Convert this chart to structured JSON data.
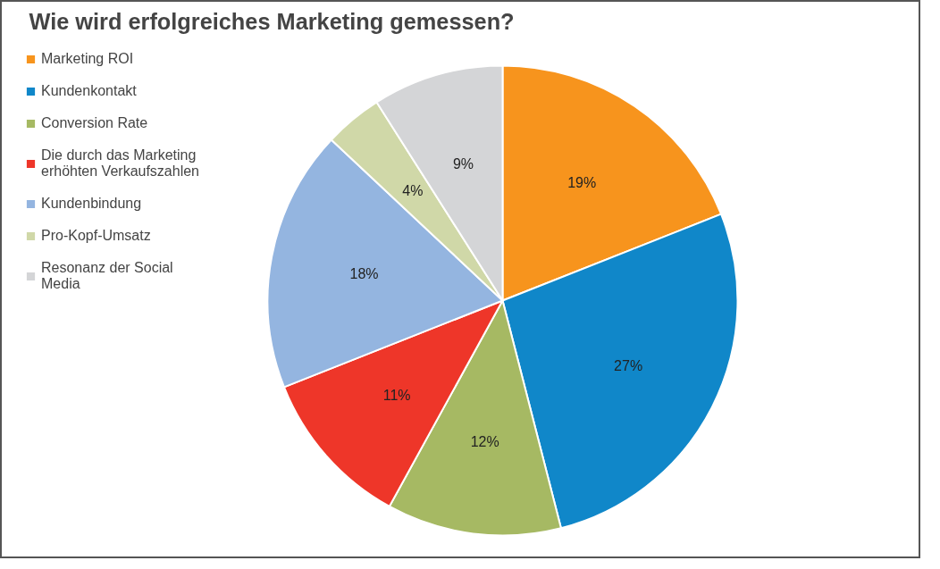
{
  "chart_data": {
    "type": "pie",
    "title": "Wie wird erfolgreiches Marketing gemessen?",
    "categories": [
      "Marketing ROI",
      "Kundenkontakt",
      "Conversion Rate",
      "Die durch das Marketing erhöhten Verkaufszahlen",
      "Kundenbindung",
      "Pro-Kopf-Umsatz",
      "Resonanz der Social Media"
    ],
    "values": [
      19,
      27,
      12,
      11,
      18,
      4,
      9
    ],
    "colors": [
      "#f7941d",
      "#1087c9",
      "#a6b963",
      "#ee3629",
      "#94b5e0",
      "#d0d8a8",
      "#d4d5d7"
    ],
    "value_labels": [
      "19%",
      "27%",
      "12%",
      "11%",
      "18%",
      "4%",
      "9%"
    ],
    "legend": "top left"
  }
}
